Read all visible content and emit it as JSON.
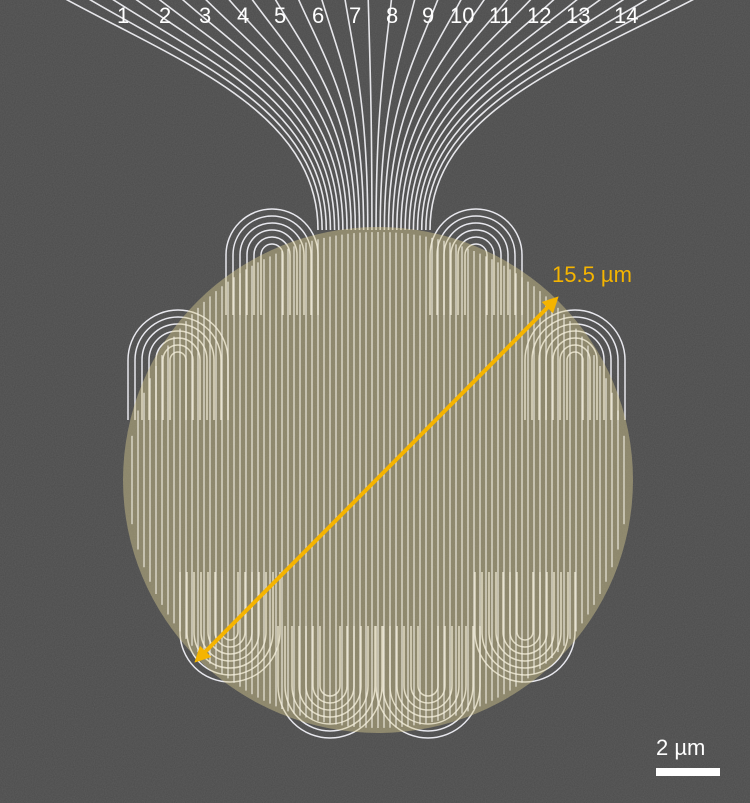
{
  "channel_labels": [
    "1",
    "2",
    "3",
    "4",
    "5",
    "6",
    "7",
    "8",
    "9",
    "10",
    "11",
    "12",
    "13",
    "14"
  ],
  "measurement": {
    "label": "15.5 µm"
  },
  "scale_bar": {
    "label": "2 µm"
  },
  "colors": {
    "background": "#4b4b4b",
    "wire": "#e8e8ee",
    "region_fill": "#d8c98f",
    "measure_arrow": "#f5b400",
    "label_text": "#ffffff"
  }
}
